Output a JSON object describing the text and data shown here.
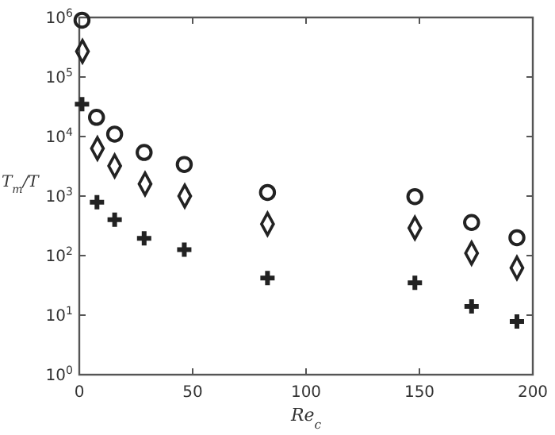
{
  "chart_data": {
    "type": "scatter",
    "xlabel": "Re$_{c}$",
    "ylabel": "T$_{m}$/T",
    "log": "y",
    "xlim": [
      0,
      200
    ],
    "ylim": [
      1,
      1000000
    ],
    "xticks": [
      0,
      50,
      100,
      150,
      200
    ],
    "yticks": [
      {
        "value": 1,
        "label": "10$^{0}$"
      },
      {
        "value": 10,
        "label": "10$^{1}$"
      },
      {
        "value": 100,
        "label": "10$^{2}$"
      },
      {
        "value": 1000,
        "label": "10$^{3}$"
      },
      {
        "value": 10000,
        "label": "10$^{4}$"
      },
      {
        "value": 100000,
        "label": "10$^{5}$"
      },
      {
        "value": 1000000,
        "label": "10$^{6}$"
      }
    ],
    "grid": false,
    "series": [
      {
        "marker": "circle",
        "color": "#222222",
        "x": [
          1.2,
          7.6,
          15.6,
          28.6,
          46.3,
          83,
          148,
          173,
          193
        ],
        "values": [
          900000,
          21000,
          11000,
          5400,
          3400,
          1150,
          980,
          360,
          200
        ]
      },
      {
        "marker": "diamond",
        "color": "#222222",
        "x": [
          1.4,
          8,
          15.6,
          29,
          46.5,
          83,
          148,
          173,
          193
        ],
        "values": [
          270000,
          6300,
          3200,
          1600,
          1000,
          340,
          290,
          110,
          62
        ]
      },
      {
        "marker": "cross",
        "color": "#222222",
        "x": [
          1.2,
          7.8,
          15.6,
          28.6,
          46.3,
          83,
          148,
          173,
          193
        ],
        "values": [
          35000,
          790,
          400,
          195,
          126,
          42,
          35,
          14,
          7.8
        ]
      }
    ]
  }
}
